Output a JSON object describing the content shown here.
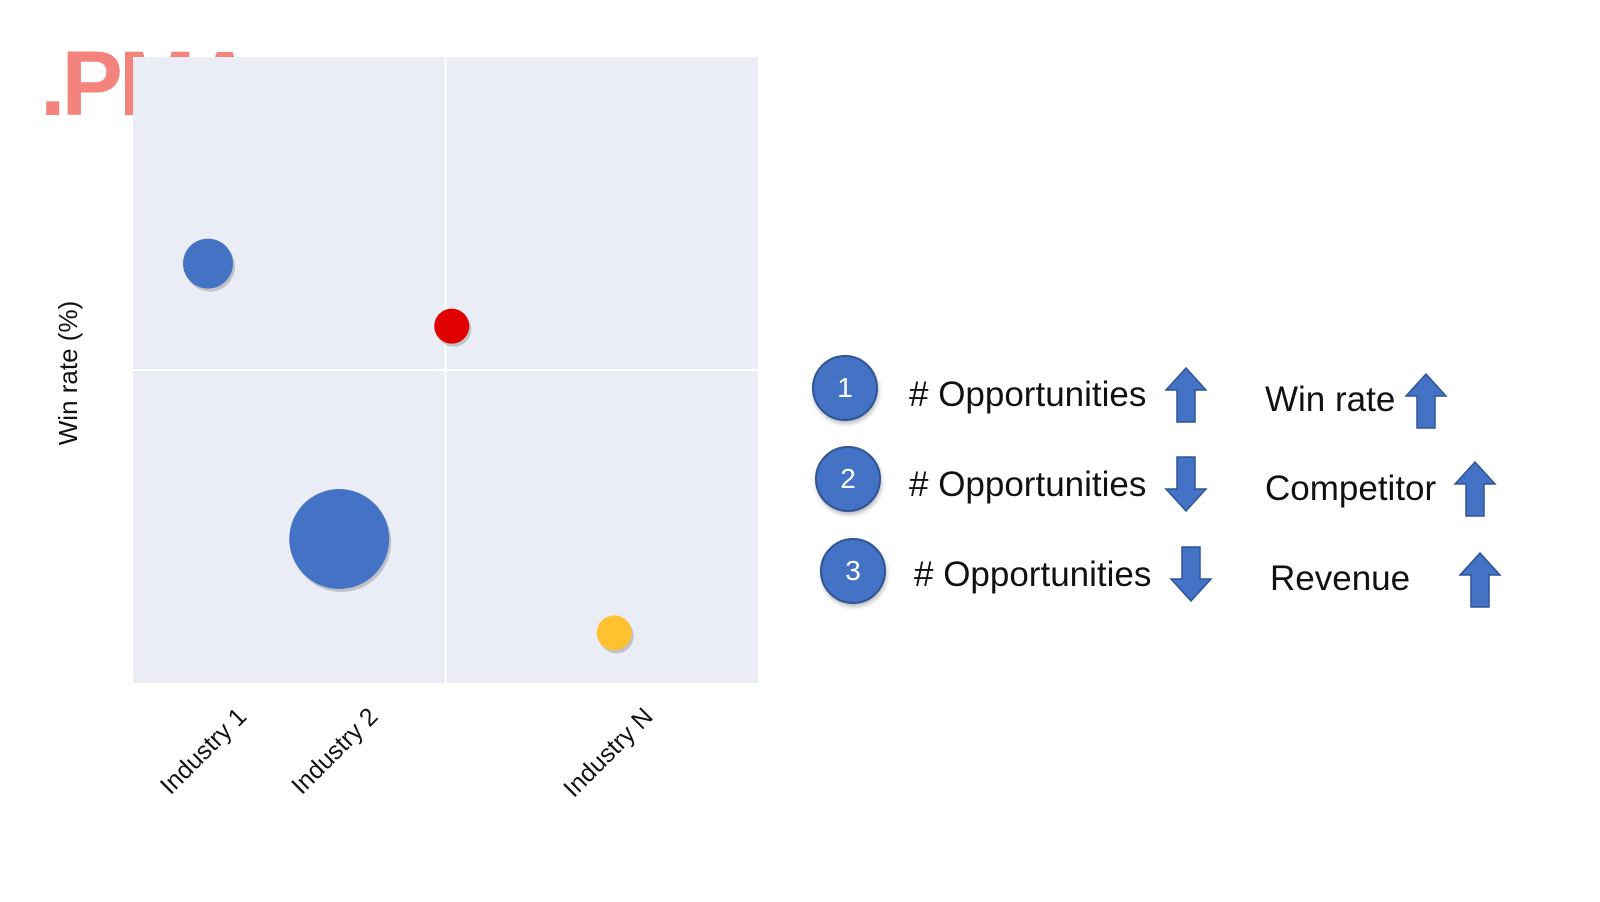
{
  "logo": {
    "text": ".PMA",
    "color": "#f4837d"
  },
  "chart_data": {
    "type": "scatter",
    "variant": "bubble-quadrant",
    "title": "",
    "xlabel": "",
    "ylabel": "Win rate (%)",
    "x_tick_labels": [
      "Industry 1",
      "Industry 2",
      "Industry N"
    ],
    "quadrant_grid": "2x2",
    "plot_background": "#ebedf6",
    "points": [
      {
        "label": "Industry 1",
        "x": 0.12,
        "y": 0.67,
        "size": 1.0,
        "color": "#4472c4"
      },
      {
        "label": "Industry 2",
        "x": 0.33,
        "y": 0.23,
        "size": 2.0,
        "color": "#4472c4"
      },
      {
        "label": "",
        "x": 0.51,
        "y": 0.57,
        "size": 0.7,
        "color": "#e00000"
      },
      {
        "label": "Industry N",
        "x": 0.77,
        "y": 0.08,
        "size": 0.7,
        "color": "#ffc12f"
      }
    ],
    "xlim": [
      0,
      1
    ],
    "ylim": [
      0,
      1
    ]
  },
  "legend": {
    "rows": [
      {
        "num": "1",
        "metric": "# Opportunities",
        "metric_dir": "up",
        "factor": "Win rate",
        "factor_dir": "up"
      },
      {
        "num": "2",
        "metric": "# Opportunities",
        "metric_dir": "down",
        "factor": "Competitor",
        "factor_dir": "up"
      },
      {
        "num": "3",
        "metric": "# Opportunities",
        "metric_dir": "down",
        "factor": "Revenue",
        "factor_dir": "up"
      }
    ],
    "circle_color": "#4472c4",
    "arrow_color": "#4472c4"
  }
}
